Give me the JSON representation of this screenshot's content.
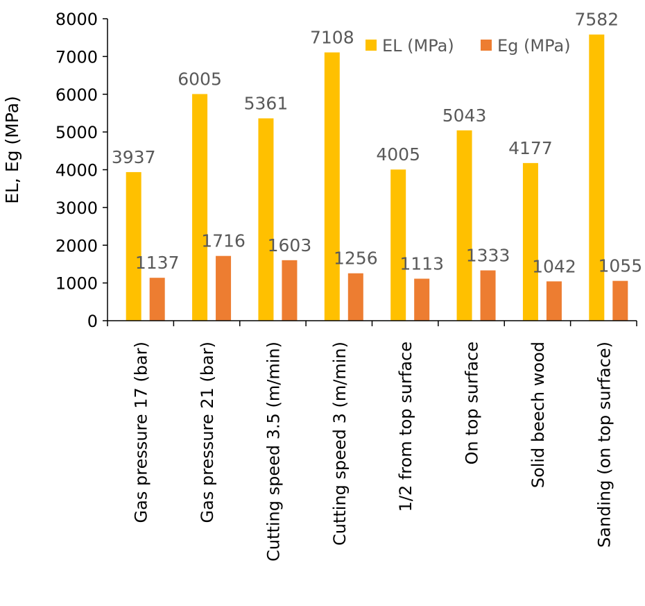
{
  "chart_data": {
    "type": "bar",
    "title": "",
    "xlabel": "",
    "ylabel": "EL, Eg (MPa)",
    "ylim": [
      0,
      8000
    ],
    "yticks": [
      0,
      1000,
      2000,
      3000,
      4000,
      5000,
      6000,
      7000,
      8000
    ],
    "grid": false,
    "legend_position": "top-right",
    "categories": [
      "Gas pressure 17 (bar)",
      "Gas pressure 21 (bar)",
      "Cutting speed 3.5 (m/min)",
      "Cutting speed 3 (m/min)",
      "1/2 from top surface",
      "On top surface",
      "Solid beech wood",
      "Sanding (on top surface)"
    ],
    "series": [
      {
        "name": "EL (MPa)",
        "color": "#FFC000",
        "values": [
          3937,
          6005,
          5361,
          7108,
          4005,
          5043,
          4177,
          7582
        ]
      },
      {
        "name": "Eg (MPa)",
        "color": "#ED7D31",
        "values": [
          1137,
          1716,
          1603,
          1256,
          1113,
          1333,
          1042,
          1055
        ]
      }
    ]
  }
}
